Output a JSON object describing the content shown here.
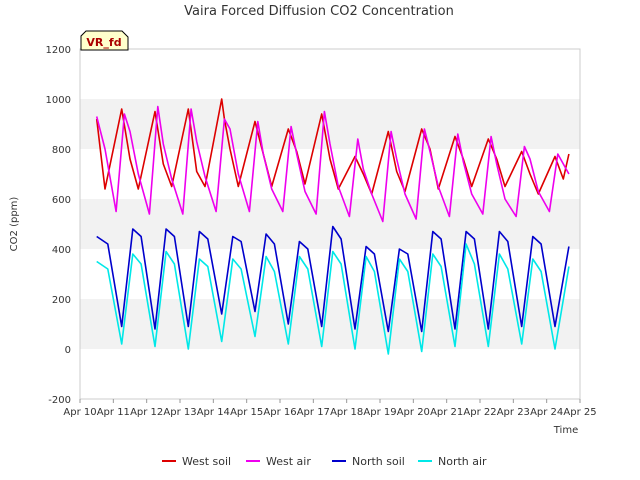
{
  "chart_data": {
    "type": "line",
    "title": "Vaira Forced Diffusion CO2 Concentration",
    "badge": "VR_fd",
    "xlabel": "Time",
    "ylabel": "CO2 (ppm)",
    "ylim": [
      -200,
      1200
    ],
    "yticks": [
      -200,
      0,
      200,
      400,
      600,
      800,
      1000,
      1200
    ],
    "xlim": [
      "2024-04-10",
      "2024-04-25"
    ],
    "xticks": [
      "Apr 10",
      "Apr 11",
      "Apr 12",
      "Apr 13",
      "Apr 14",
      "Apr 15",
      "Apr 16",
      "Apr 17",
      "Apr 18",
      "Apr 19",
      "Apr 20",
      "Apr 21",
      "Apr 22",
      "Apr 23",
      "Apr 24",
      "Apr 25"
    ],
    "grid": "horizontal bands",
    "legend_position": "bottom",
    "series": [
      {
        "name": "West soil",
        "color": "#dd0000",
        "x": [
          "2024-04-10 12:00",
          "2024-04-10 18:00",
          "2024-04-11 06:00",
          "2024-04-11 12:00",
          "2024-04-11 18:00",
          "2024-04-12 06:00",
          "2024-04-12 12:00",
          "2024-04-12 18:00",
          "2024-04-13 06:00",
          "2024-04-13 12:00",
          "2024-04-13 18:00",
          "2024-04-14 06:00",
          "2024-04-14 08:00",
          "2024-04-14 12:00",
          "2024-04-14 18:00",
          "2024-04-15 06:00",
          "2024-04-15 12:00",
          "2024-04-15 18:00",
          "2024-04-16 06:00",
          "2024-04-16 12:00",
          "2024-04-16 18:00",
          "2024-04-17 06:00",
          "2024-04-17 12:00",
          "2024-04-17 18:00",
          "2024-04-18 06:00",
          "2024-04-18 12:00",
          "2024-04-18 18:00",
          "2024-04-19 06:00",
          "2024-04-19 12:00",
          "2024-04-19 18:00",
          "2024-04-20 06:00",
          "2024-04-20 12:00",
          "2024-04-20 18:00",
          "2024-04-21 06:00",
          "2024-04-21 12:00",
          "2024-04-21 18:00",
          "2024-04-22 06:00",
          "2024-04-22 12:00",
          "2024-04-22 18:00",
          "2024-04-23 06:00",
          "2024-04-23 12:00",
          "2024-04-23 18:00",
          "2024-04-24 06:00",
          "2024-04-24 12:00",
          "2024-04-24 16:00"
        ],
        "y": [
          920,
          640,
          960,
          760,
          640,
          950,
          740,
          650,
          960,
          710,
          650,
          1000,
          920,
          800,
          650,
          910,
          780,
          650,
          880,
          790,
          660,
          940,
          760,
          640,
          770,
          700,
          620,
          870,
          710,
          630,
          880,
          800,
          640,
          850,
          760,
          650,
          840,
          760,
          650,
          790,
          700,
          620,
          770,
          680,
          780
        ]
      },
      {
        "name": "West air",
        "color": "#ee00ee",
        "x": [
          "2024-04-10 12:00",
          "2024-04-10 18:00",
          "2024-04-11 02:00",
          "2024-04-11 08:00",
          "2024-04-11 12:00",
          "2024-04-11 18:00",
          "2024-04-12 02:00",
          "2024-04-12 08:00",
          "2024-04-12 12:00",
          "2024-04-12 18:00",
          "2024-04-13 02:00",
          "2024-04-13 08:00",
          "2024-04-13 12:00",
          "2024-04-13 18:00",
          "2024-04-14 02:00",
          "2024-04-14 08:00",
          "2024-04-14 12:00",
          "2024-04-14 18:00",
          "2024-04-15 02:00",
          "2024-04-15 08:00",
          "2024-04-15 12:00",
          "2024-04-15 18:00",
          "2024-04-16 02:00",
          "2024-04-16 08:00",
          "2024-04-16 12:00",
          "2024-04-16 18:00",
          "2024-04-17 02:00",
          "2024-04-17 08:00",
          "2024-04-17 12:00",
          "2024-04-17 18:00",
          "2024-04-18 02:00",
          "2024-04-18 08:00",
          "2024-04-18 12:00",
          "2024-04-18 18:00",
          "2024-04-19 02:00",
          "2024-04-19 08:00",
          "2024-04-19 12:00",
          "2024-04-19 18:00",
          "2024-04-20 02:00",
          "2024-04-20 08:00",
          "2024-04-20 12:00",
          "2024-04-20 18:00",
          "2024-04-21 02:00",
          "2024-04-21 08:00",
          "2024-04-21 12:00",
          "2024-04-21 18:00",
          "2024-04-22 02:00",
          "2024-04-22 08:00",
          "2024-04-22 12:00",
          "2024-04-22 18:00",
          "2024-04-23 02:00",
          "2024-04-23 08:00",
          "2024-04-23 12:00",
          "2024-04-23 18:00",
          "2024-04-24 02:00",
          "2024-04-24 08:00",
          "2024-04-24 16:00"
        ],
        "y": [
          930,
          800,
          550,
          940,
          870,
          700,
          540,
          970,
          820,
          680,
          540,
          960,
          830,
          690,
          550,
          920,
          880,
          700,
          550,
          910,
          780,
          640,
          550,
          890,
          780,
          630,
          540,
          950,
          820,
          650,
          530,
          840,
          720,
          620,
          510,
          870,
          760,
          620,
          520,
          880,
          790,
          650,
          530,
          860,
          750,
          620,
          540,
          850,
          740,
          600,
          530,
          810,
          760,
          630,
          550,
          780,
          700
        ]
      },
      {
        "name": "North soil",
        "color": "#0000cc",
        "x": [
          "2024-04-10 12:00",
          "2024-04-10 20:00",
          "2024-04-11 06:00",
          "2024-04-11 14:00",
          "2024-04-11 20:00",
          "2024-04-12 06:00",
          "2024-04-12 14:00",
          "2024-04-12 20:00",
          "2024-04-13 06:00",
          "2024-04-13 14:00",
          "2024-04-13 20:00",
          "2024-04-14 06:00",
          "2024-04-14 14:00",
          "2024-04-14 20:00",
          "2024-04-15 06:00",
          "2024-04-15 14:00",
          "2024-04-15 20:00",
          "2024-04-16 06:00",
          "2024-04-16 14:00",
          "2024-04-16 20:00",
          "2024-04-17 06:00",
          "2024-04-17 14:00",
          "2024-04-17 20:00",
          "2024-04-18 06:00",
          "2024-04-18 14:00",
          "2024-04-18 20:00",
          "2024-04-19 06:00",
          "2024-04-19 14:00",
          "2024-04-19 20:00",
          "2024-04-20 06:00",
          "2024-04-20 14:00",
          "2024-04-20 20:00",
          "2024-04-21 06:00",
          "2024-04-21 14:00",
          "2024-04-21 20:00",
          "2024-04-22 06:00",
          "2024-04-22 14:00",
          "2024-04-22 20:00",
          "2024-04-23 06:00",
          "2024-04-23 14:00",
          "2024-04-23 20:00",
          "2024-04-24 06:00",
          "2024-04-24 16:00"
        ],
        "y": [
          450,
          420,
          90,
          480,
          450,
          80,
          480,
          450,
          90,
          470,
          440,
          140,
          450,
          430,
          150,
          460,
          420,
          100,
          430,
          400,
          90,
          490,
          440,
          80,
          410,
          380,
          70,
          400,
          380,
          70,
          470,
          440,
          80,
          470,
          440,
          80,
          470,
          430,
          90,
          450,
          420,
          90,
          410
        ]
      },
      {
        "name": "North air",
        "color": "#00e8e8",
        "x": [
          "2024-04-10 12:00",
          "2024-04-10 20:00",
          "2024-04-11 06:00",
          "2024-04-11 14:00",
          "2024-04-11 20:00",
          "2024-04-12 06:00",
          "2024-04-12 14:00",
          "2024-04-12 20:00",
          "2024-04-13 06:00",
          "2024-04-13 14:00",
          "2024-04-13 20:00",
          "2024-04-14 06:00",
          "2024-04-14 14:00",
          "2024-04-14 20:00",
          "2024-04-15 06:00",
          "2024-04-15 14:00",
          "2024-04-15 20:00",
          "2024-04-16 06:00",
          "2024-04-16 14:00",
          "2024-04-16 20:00",
          "2024-04-17 06:00",
          "2024-04-17 14:00",
          "2024-04-17 20:00",
          "2024-04-18 06:00",
          "2024-04-18 14:00",
          "2024-04-18 20:00",
          "2024-04-19 06:00",
          "2024-04-19 14:00",
          "2024-04-19 20:00",
          "2024-04-20 06:00",
          "2024-04-20 14:00",
          "2024-04-20 20:00",
          "2024-04-21 06:00",
          "2024-04-21 14:00",
          "2024-04-21 20:00",
          "2024-04-22 06:00",
          "2024-04-22 14:00",
          "2024-04-22 20:00",
          "2024-04-23 06:00",
          "2024-04-23 14:00",
          "2024-04-23 20:00",
          "2024-04-24 06:00",
          "2024-04-24 16:00"
        ],
        "y": [
          350,
          320,
          20,
          380,
          340,
          10,
          390,
          340,
          0,
          360,
          330,
          30,
          360,
          320,
          50,
          370,
          310,
          20,
          370,
          320,
          10,
          390,
          340,
          0,
          370,
          310,
          -20,
          360,
          310,
          -10,
          380,
          330,
          10,
          420,
          340,
          10,
          380,
          320,
          20,
          360,
          310,
          0,
          330
        ]
      }
    ]
  }
}
